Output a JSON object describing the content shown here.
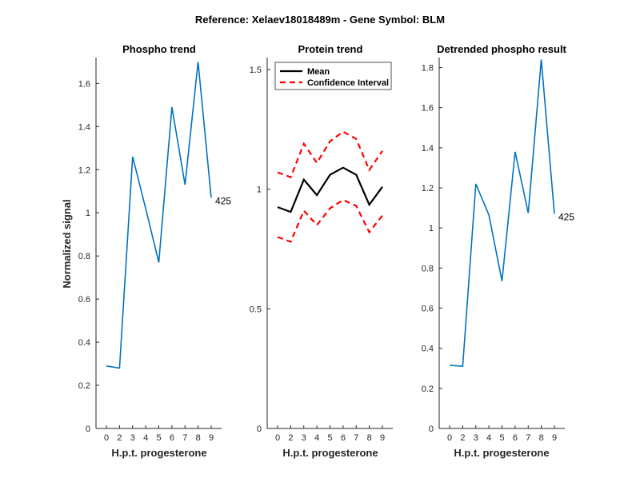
{
  "suptitle": "Reference:  Xelaev18018489m - Gene Symbol:  BLM",
  "colors": {
    "series_blue": "#0072BD",
    "mean": "#000000",
    "ci": "#FF0000",
    "axis": "#262626"
  },
  "chart_data": [
    {
      "type": "line",
      "title": "Phospho trend",
      "xlabel": "H.p.t. progesterone",
      "ylabel": "Normalized signal",
      "categories": [
        "0",
        "2",
        "3",
        "4",
        "5",
        "6",
        "7",
        "8",
        "9"
      ],
      "ylim": [
        0,
        1.72
      ],
      "yticks": [
        "0",
        "0.2",
        "0.4",
        "0.6",
        "0.8",
        "1",
        "1.2",
        "1.4",
        "1.6"
      ],
      "series": [
        {
          "values": [
            0.29,
            0.28,
            1.26,
            1.02,
            0.77,
            1.49,
            1.13,
            1.7,
            1.07
          ]
        }
      ],
      "annotation": "425"
    },
    {
      "type": "line",
      "title": "Protein trend",
      "xlabel": "H.p.t. progesterone",
      "ylabel": "",
      "categories": [
        "0",
        "2",
        "3",
        "4",
        "5",
        "6",
        "7",
        "8",
        "9"
      ],
      "ylim": [
        0,
        1.55
      ],
      "yticks": [
        "0",
        "0.5",
        "1",
        "1.5"
      ],
      "legend_position": "top-left",
      "series": [
        {
          "name": "Mean",
          "style": "solid",
          "values": [
            0.925,
            0.905,
            1.04,
            0.975,
            1.06,
            1.09,
            1.06,
            0.935,
            1.01
          ]
        },
        {
          "name": "Confidence Interval",
          "style": "dashed",
          "values": [
            1.07,
            1.05,
            1.19,
            1.11,
            1.2,
            1.24,
            1.21,
            1.08,
            1.16
          ]
        },
        {
          "style": "dashed",
          "values": [
            0.8,
            0.78,
            0.91,
            0.85,
            0.92,
            0.955,
            0.93,
            0.82,
            0.89
          ]
        }
      ]
    },
    {
      "type": "line",
      "title": "Detrended phospho result",
      "xlabel": "H.p.t. progesterone",
      "ylabel": "",
      "categories": [
        "0",
        "2",
        "3",
        "4",
        "5",
        "6",
        "7",
        "8",
        "9"
      ],
      "ylim": [
        0,
        1.85
      ],
      "yticks": [
        "0",
        "0.2",
        "0.4",
        "0.6",
        "0.8",
        "1",
        "1.2",
        "1.4",
        "1.6",
        "1.8"
      ],
      "series": [
        {
          "values": [
            0.315,
            0.31,
            1.22,
            1.065,
            0.735,
            1.38,
            1.075,
            1.84,
            1.07
          ]
        }
      ],
      "annotation": "425"
    }
  ]
}
